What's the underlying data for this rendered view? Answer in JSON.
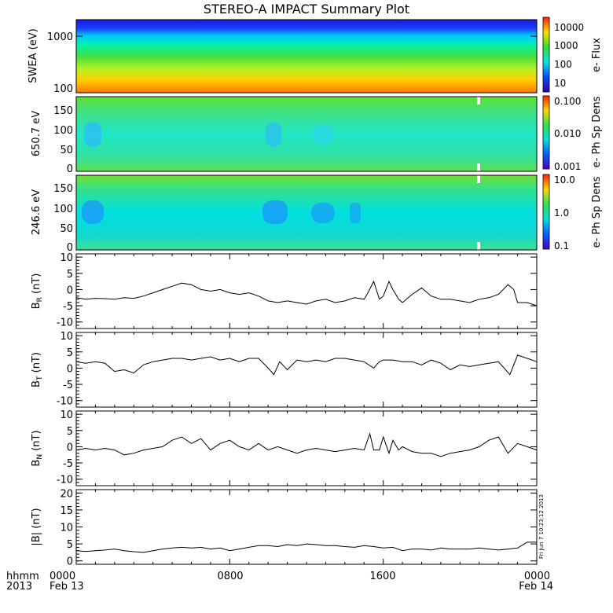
{
  "title": "STEREO-A IMPACT Summary Plot",
  "footer": {
    "left_top": "hhmm",
    "left_bottom": "2013",
    "ticks": [
      "0000",
      "0800",
      "1600",
      "0000"
    ],
    "dates": [
      "Feb 13",
      "Feb 14"
    ]
  },
  "side_stamp": "Fri Jun  7 10:23:12 2013",
  "chart_data": [
    {
      "type": "heatmap",
      "id": "swea",
      "ylabel": "SWEA (eV)",
      "yscale": "log",
      "ylim": [
        90,
        2000
      ],
      "ytick_labels": [
        "1000",
        "100"
      ],
      "ytick_values": [
        1000,
        100
      ],
      "colorbar": {
        "label": "e- Flux",
        "scale": "log",
        "range": [
          3,
          30000
        ],
        "tick_labels": [
          "10000",
          "1000",
          "100",
          "10"
        ],
        "tick_values": [
          10000,
          1000,
          100,
          10
        ]
      },
      "xlim_hours": [
        0,
        24
      ]
    },
    {
      "type": "heatmap",
      "id": "pad650",
      "ylabel": "650.7 eV",
      "ylim": [
        -10,
        180
      ],
      "ytick_labels": [
        "150",
        "100",
        "50",
        "0"
      ],
      "ytick_values": [
        150,
        100,
        50,
        0
      ],
      "colorbar": {
        "label": "e- Ph Sp Dens",
        "scale": "log",
        "range": [
          0.001,
          0.1
        ],
        "tick_labels": [
          "0.100",
          "0.010",
          "0.001"
        ],
        "tick_values": [
          0.1,
          0.01,
          0.001
        ]
      },
      "xlim_hours": [
        0,
        24
      ]
    },
    {
      "type": "heatmap",
      "id": "pad246",
      "ylabel": "246.6 eV",
      "ylim": [
        -10,
        180
      ],
      "ytick_labels": [
        "150",
        "100",
        "50",
        "0"
      ],
      "ytick_values": [
        150,
        100,
        50,
        0
      ],
      "colorbar": {
        "label": "e- Ph Sp Dens",
        "scale": "log",
        "range": [
          0.1,
          10
        ],
        "tick_labels": [
          "10.0",
          "1.0",
          "0.1"
        ],
        "tick_values": [
          10,
          1,
          0.1
        ]
      },
      "xlim_hours": [
        0,
        24
      ]
    },
    {
      "type": "line",
      "id": "br",
      "ylabel": "B",
      "ylabel_sub": "R",
      "ylabel_unit": "(nT)",
      "ylim": [
        -12,
        11
      ],
      "ytick_labels": [
        "10",
        "5",
        "0",
        "-5",
        "-10"
      ],
      "ytick_values": [
        10,
        5,
        0,
        -5,
        -10
      ],
      "xlim_hours": [
        0,
        24
      ],
      "x": [
        0,
        0.5,
        1,
        1.5,
        2,
        2.5,
        3,
        3.5,
        4,
        4.5,
        5,
        5.5,
        6,
        6.5,
        7,
        7.5,
        8,
        8.5,
        9,
        9.5,
        10,
        10.5,
        11,
        11.5,
        12,
        12.5,
        13,
        13.5,
        14,
        14.5,
        15,
        15.2,
        15.5,
        15.8,
        16,
        16.3,
        16.5,
        16.8,
        17,
        17.5,
        18,
        18.5,
        19,
        19.5,
        20,
        20.5,
        21,
        21.5,
        22,
        22.5,
        22.8,
        23,
        23.5,
        24
      ],
      "y": [
        -2.5,
        -3,
        -2.7,
        -2.8,
        -3,
        -2.5,
        -2.7,
        -2,
        -1,
        0,
        1,
        2,
        1.5,
        0,
        -0.5,
        0,
        -1,
        -1.5,
        -1,
        -2,
        -3.5,
        -4,
        -3.5,
        -4,
        -4.5,
        -3.5,
        -3,
        -4,
        -3.5,
        -2.5,
        -3,
        -1,
        2.5,
        -3,
        -2,
        2.5,
        0,
        -3,
        -4,
        -1.5,
        0.5,
        -2,
        -3,
        -3,
        -3.5,
        -4,
        -3,
        -2.5,
        -1.5,
        1.5,
        0,
        -4,
        -4,
        -5
      ]
    },
    {
      "type": "line",
      "id": "bt",
      "ylabel": "B",
      "ylabel_sub": "T",
      "ylabel_unit": "(nT)",
      "ylim": [
        -12,
        11
      ],
      "ytick_labels": [
        "10",
        "5",
        "0",
        "-5",
        "-10"
      ],
      "ytick_values": [
        10,
        5,
        0,
        -5,
        -10
      ],
      "xlim_hours": [
        0,
        24
      ],
      "x": [
        0,
        0.5,
        1,
        1.5,
        2,
        2.5,
        3,
        3.5,
        4,
        4.5,
        5,
        5.5,
        6,
        6.5,
        7,
        7.5,
        8,
        8.5,
        9,
        9.5,
        10,
        10.3,
        10.6,
        11,
        11.5,
        12,
        12.5,
        13,
        13.5,
        14,
        14.5,
        15,
        15.5,
        15.8,
        16,
        16.5,
        17,
        17.5,
        18,
        18.5,
        19,
        19.5,
        20,
        20.5,
        21,
        21.5,
        22,
        22.3,
        22.6,
        23,
        23.5,
        24
      ],
      "y": [
        2,
        1.5,
        2,
        1.5,
        -1,
        -0.5,
        -1.5,
        1,
        2,
        2.5,
        3,
        3,
        2.5,
        3,
        3.5,
        2.5,
        3,
        2,
        3,
        3,
        0,
        -2,
        2,
        -0.5,
        2.5,
        2,
        2.5,
        2,
        3,
        3,
        2.5,
        2,
        0,
        2,
        2.5,
        2.5,
        2,
        2,
        1,
        2.5,
        1.5,
        -0.5,
        1,
        0.5,
        1,
        1.5,
        2,
        0,
        -2,
        4,
        3,
        2
      ]
    },
    {
      "type": "line",
      "id": "bn",
      "ylabel": "B",
      "ylabel_sub": "N",
      "ylabel_unit": "(nT)",
      "ylim": [
        -12,
        11
      ],
      "ytick_labels": [
        "10",
        "5",
        "0",
        "-5",
        "-10"
      ],
      "ytick_values": [
        10,
        5,
        0,
        -5,
        -10
      ],
      "xlim_hours": [
        0,
        24
      ],
      "x": [
        0,
        0.5,
        1,
        1.5,
        2,
        2.5,
        3,
        3.5,
        4,
        4.5,
        5,
        5.5,
        6,
        6.5,
        7,
        7.5,
        8,
        8.5,
        9,
        9.5,
        10,
        10.5,
        11,
        11.5,
        12,
        12.5,
        13,
        13.5,
        14,
        14.5,
        15,
        15.3,
        15.5,
        15.8,
        16,
        16.3,
        16.5,
        16.8,
        17,
        17.5,
        18,
        18.5,
        19,
        19.5,
        20,
        20.5,
        21,
        21.5,
        22,
        22.5,
        23,
        23.5,
        24
      ],
      "y": [
        -1,
        -0.5,
        -1,
        -0.5,
        -1,
        -2.5,
        -2,
        -1,
        -0.5,
        0,
        2,
        3,
        1,
        2.5,
        -1,
        1,
        2,
        0,
        -1,
        1,
        -1,
        0,
        -1,
        -2,
        -1,
        -0.5,
        -1,
        -1.5,
        -1,
        -0.5,
        -1,
        4,
        -1,
        -1,
        3,
        -2,
        2,
        -1,
        0,
        -1.5,
        -2,
        -2,
        -3,
        -2,
        -1.5,
        -1,
        0,
        2,
        3,
        -2,
        1,
        0,
        -1
      ]
    },
    {
      "type": "line",
      "id": "bmag",
      "ylabel": "|B| (nT)",
      "ylim": [
        -1,
        21
      ],
      "ytick_labels": [
        "20",
        "15",
        "10",
        "5",
        "0"
      ],
      "ytick_values": [
        20,
        15,
        10,
        5,
        0
      ],
      "xlim_hours": [
        0,
        24
      ],
      "x": [
        0,
        0.5,
        1,
        1.5,
        2,
        2.5,
        3,
        3.5,
        4,
        4.5,
        5,
        5.5,
        6,
        6.5,
        7,
        7.5,
        8,
        8.5,
        9,
        9.5,
        10,
        10.5,
        11,
        11.5,
        12,
        12.5,
        13,
        13.5,
        14,
        14.5,
        15,
        15.5,
        16,
        16.5,
        17,
        17.5,
        18,
        18.5,
        19,
        19.5,
        20,
        20.5,
        21,
        21.5,
        22,
        22.5,
        23,
        23.5,
        24
      ],
      "y": [
        3,
        2.8,
        3,
        3.2,
        3.5,
        3,
        2.7,
        2.5,
        3,
        3.5,
        3.8,
        4,
        3.8,
        4,
        3.5,
        3.8,
        3,
        3.5,
        4,
        4.5,
        4.5,
        4.2,
        4.8,
        4.5,
        5,
        4.8,
        4.5,
        4.5,
        4.2,
        4,
        4.5,
        4.2,
        3.8,
        4,
        3,
        3.5,
        3.5,
        3.2,
        3.8,
        3.5,
        3.5,
        3.5,
        3.8,
        3.5,
        3.2,
        3.5,
        3.8,
        5.5,
        5.5
      ]
    }
  ]
}
